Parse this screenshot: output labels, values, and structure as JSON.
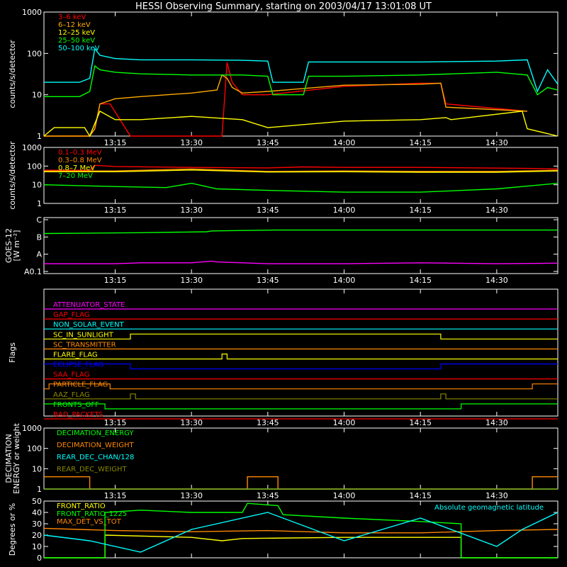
{
  "title": "HESSI Observing Summary, starting on 2003/04/17 13:01:08 UT",
  "time_ticks": [
    "13:15",
    "13:30",
    "13:45",
    "14:00",
    "14:15",
    "14:30"
  ],
  "chart_data": [
    {
      "type": "line",
      "ylabel": "counts/s/detector",
      "yscale": "log",
      "ylim": [
        1,
        1000
      ],
      "yticks": [
        "1",
        "10",
        "100",
        "1000"
      ],
      "xlim": [
        "13:01",
        "14:42"
      ],
      "legend_position": "top-left",
      "series": [
        {
          "name": "3–6 keV",
          "color": "#ff0000",
          "x": [
            "13:01",
            "13:10",
            "13:11",
            "13:12",
            "13:14",
            "13:18",
            "13:30",
            "13:36",
            "13:37",
            "13:38",
            "13:40",
            "13:45",
            "14:00",
            "14:15",
            "14:19",
            "14:20",
            "14:36"
          ],
          "y": [
            1,
            1,
            1.5,
            6,
            6,
            1,
            1,
            1,
            60,
            20,
            10,
            10,
            16,
            19,
            19,
            6,
            4
          ]
        },
        {
          "name": "6–12 keV",
          "color": "#ffaa00",
          "x": [
            "13:01",
            "13:10",
            "13:11",
            "13:12",
            "13:15",
            "13:20",
            "13:30",
            "13:35",
            "13:36",
            "13:37",
            "13:38",
            "13:40",
            "13:45",
            "14:00",
            "14:15",
            "14:19",
            "14:20",
            "14:36"
          ],
          "y": [
            1,
            1,
            1.5,
            6,
            8,
            9,
            11,
            13,
            30,
            25,
            15,
            11,
            12,
            17,
            18,
            19,
            5,
            4
          ]
        },
        {
          "name": "12–25 keV",
          "color": "#ffff00",
          "x": [
            "13:01",
            "13:03",
            "13:09",
            "13:10",
            "13:12",
            "13:15",
            "13:20",
            "13:30",
            "13:40",
            "13:45",
            "14:00",
            "14:15",
            "14:20",
            "14:21",
            "14:35",
            "14:36",
            "14:42"
          ],
          "y": [
            1,
            1.6,
            1.6,
            1,
            4,
            2.5,
            2.5,
            3,
            2.5,
            1.6,
            2.3,
            2.5,
            2.8,
            2.5,
            4,
            1.5,
            1
          ]
        },
        {
          "name": "25–50 keV",
          "color": "#00ff00",
          "x": [
            "13:01",
            "13:08",
            "13:10",
            "13:11",
            "13:12",
            "13:15",
            "13:20",
            "13:30",
            "13:40",
            "13:45",
            "13:46",
            "13:52",
            "13:53",
            "14:00",
            "14:15",
            "14:30",
            "14:36",
            "14:38",
            "14:40",
            "14:42"
          ],
          "y": [
            9,
            9,
            12,
            50,
            40,
            35,
            32,
            30,
            30,
            28,
            10,
            10,
            28,
            28,
            30,
            35,
            30,
            10,
            15,
            13
          ]
        },
        {
          "name": "50–100 keV",
          "color": "#00ffff",
          "x": [
            "13:01",
            "13:08",
            "13:10",
            "13:11",
            "13:12",
            "13:15",
            "13:20",
            "13:30",
            "13:40",
            "13:45",
            "13:46",
            "13:52",
            "13:53",
            "14:00",
            "14:15",
            "14:30",
            "14:36",
            "14:38",
            "14:40",
            "14:42"
          ],
          "y": [
            20,
            20,
            25,
            130,
            90,
            75,
            70,
            70,
            68,
            65,
            20,
            20,
            62,
            62,
            62,
            65,
            70,
            12,
            40,
            18
          ]
        }
      ]
    },
    {
      "type": "line",
      "ylabel": "counts/s/detector",
      "yscale": "log",
      "ylim": [
        1,
        1000
      ],
      "yticks": [
        "1",
        "10",
        "100",
        "1000"
      ],
      "legend_position": "top-left",
      "series": [
        {
          "name": "0.1–0.3 MeV",
          "color": "#ff0000",
          "x": [
            "13:01",
            "13:10",
            "13:11",
            "13:15",
            "13:30",
            "13:45",
            "13:52",
            "14:00",
            "14:15",
            "14:36",
            "14:42"
          ],
          "y": [
            60,
            60,
            110,
            95,
            85,
            80,
            90,
            85,
            85,
            75,
            70
          ]
        },
        {
          "name": "0.3–0.8 MeV",
          "color": "#ff8800",
          "x": [
            "13:01",
            "13:15",
            "13:30",
            "13:45",
            "14:00",
            "14:15",
            "14:30",
            "14:42"
          ],
          "y": [
            55,
            55,
            70,
            52,
            55,
            52,
            52,
            60
          ]
        },
        {
          "name": "0.8–7 MeV",
          "color": "#ffff00",
          "x": [
            "13:01",
            "13:15",
            "13:30",
            "13:45",
            "14:00",
            "14:15",
            "14:30",
            "14:42"
          ],
          "y": [
            50,
            50,
            62,
            48,
            50,
            47,
            47,
            55
          ]
        },
        {
          "name": "7–20 MeV",
          "color": "#00ff00",
          "x": [
            "13:01",
            "13:15",
            "13:25",
            "13:30",
            "13:35",
            "13:45",
            "14:00",
            "14:15",
            "14:30",
            "14:42"
          ],
          "y": [
            10,
            8,
            7,
            12,
            6,
            5,
            4,
            4,
            6,
            12
          ]
        }
      ]
    },
    {
      "type": "line",
      "ylabel": "GOES-12 [W m⁻²]",
      "yticks": [
        "A0.1",
        "A",
        "B",
        "C"
      ],
      "series": [
        {
          "name": "",
          "color": "#00ff00",
          "x": [
            "13:01",
            "13:20",
            "13:33",
            "13:34",
            "13:46",
            "14:42"
          ],
          "y": [
            2.2,
            2.25,
            2.3,
            2.35,
            2.4,
            2.4
          ]
        },
        {
          "name": "",
          "color": "#ff00ff",
          "x": [
            "13:01",
            "13:15",
            "13:20",
            "13:30",
            "13:34",
            "13:35",
            "13:45",
            "14:00",
            "14:15",
            "14:30",
            "14:42"
          ],
          "y": [
            0.45,
            0.45,
            0.5,
            0.5,
            0.6,
            0.55,
            0.45,
            0.45,
            0.5,
            0.45,
            0.48
          ]
        }
      ]
    },
    {
      "type": "line",
      "ylabel": "Flags",
      "series": [
        {
          "name": "ATTENUATOR_STATE",
          "color": "#ff00ff",
          "x": [
            "13:01",
            "14:42"
          ],
          "y": [
            0,
            0
          ]
        },
        {
          "name": "GAP_FLAG",
          "color": "#ff0000",
          "x": [
            "13:01",
            "14:42"
          ],
          "y": [
            0,
            0
          ]
        },
        {
          "name": "NON_SOLAR_EVENT",
          "color": "#00ffff",
          "x": [
            "13:01",
            "14:42"
          ],
          "y": [
            0,
            0
          ]
        },
        {
          "name": "SC_IN_SUNLIGHT",
          "color": "#ffff00",
          "x": [
            "13:01",
            "13:18",
            "13:18",
            "14:19",
            "14:19",
            "14:42"
          ],
          "y": [
            0,
            0,
            1,
            1,
            0,
            0
          ]
        },
        {
          "name": "SC_TRANSMITTER",
          "color": "#ff8800",
          "x": [
            "13:01",
            "14:42"
          ],
          "y": [
            0,
            0
          ]
        },
        {
          "name": "FLARE_FLAG",
          "color": "#ffff00",
          "x": [
            "13:01",
            "13:36",
            "13:36",
            "13:37",
            "13:37",
            "14:42"
          ],
          "y": [
            0,
            0,
            1,
            1,
            0,
            0
          ]
        },
        {
          "name": "ECLIPSE_FLAG",
          "color": "#0000ff",
          "x": [
            "13:01",
            "13:18",
            "13:18",
            "14:19",
            "14:19",
            "14:42"
          ],
          "y": [
            1,
            1,
            0,
            0,
            1,
            1
          ]
        },
        {
          "name": "SAA_FLAG",
          "color": "#ff0000",
          "x": [
            "13:01",
            "14:42"
          ],
          "y": [
            0,
            0
          ]
        },
        {
          "name": "PARTICLE_FLAG",
          "color": "#ff8800",
          "x": [
            "13:01",
            "13:02",
            "13:02",
            "13:14",
            "13:14",
            "14:37",
            "14:37",
            "14:42"
          ],
          "y": [
            0,
            0,
            1,
            1,
            0,
            0,
            1,
            1
          ]
        },
        {
          "name": "AAZ_FLAG",
          "color": "#888800",
          "x": [
            "13:01",
            "13:18",
            "13:18",
            "13:19",
            "13:19",
            "14:19",
            "14:19",
            "14:20",
            "14:20",
            "14:42"
          ],
          "y": [
            0,
            0,
            1,
            1,
            0,
            0,
            1,
            1,
            0,
            0
          ]
        },
        {
          "name": "FRONTS_OFF",
          "color": "#00ff00",
          "x": [
            "13:01",
            "13:13",
            "13:13",
            "14:23",
            "14:23",
            "14:42"
          ],
          "y": [
            1,
            1,
            0,
            0,
            1,
            1
          ]
        },
        {
          "name": "BAD_PACKETS",
          "color": "#ff0000",
          "x": [
            "13:01",
            "14:42"
          ],
          "y": [
            0,
            0
          ]
        }
      ]
    },
    {
      "type": "line",
      "ylabel": "DECIMATION ENERGY or weight",
      "yscale": "log",
      "ylim": [
        1,
        1000
      ],
      "yticks": [
        "1",
        "10",
        "100",
        "1000"
      ],
      "legend_position": "top-left",
      "series": [
        {
          "name": "DECIMATION_ENERGY",
          "color": "#00ff00",
          "x": [
            "13:01",
            "14:42"
          ],
          "y": [
            1,
            1
          ]
        },
        {
          "name": "DECIMATION_WEIGHT",
          "color": "#ff8800",
          "x": [
            "13:01",
            "13:10",
            "13:10",
            "13:41",
            "13:41",
            "13:47",
            "13:47",
            "14:37",
            "14:37",
            "14:42"
          ],
          "y": [
            4,
            4,
            1,
            1,
            4,
            4,
            1,
            1,
            4,
            4
          ]
        },
        {
          "name": "REAR_DEC_CHAN/128",
          "color": "#00ffff",
          "x": [
            "13:01",
            "14:42"
          ],
          "y": [
            1,
            1
          ]
        },
        {
          "name": "REAR_DEC_WEIGHT",
          "color": "#888800",
          "x": [
            "13:01",
            "14:42"
          ],
          "y": [
            1,
            1
          ]
        }
      ]
    },
    {
      "type": "line",
      "ylabel": "Degrees or %",
      "ylim": [
        0,
        50
      ],
      "yticks": [
        "0",
        "10",
        "20",
        "30",
        "40",
        "50"
      ],
      "series": [
        {
          "name": "FRONT_RATIO",
          "color": "#ffff00",
          "x": [
            "13:01",
            "13:13",
            "13:13",
            "13:30",
            "13:36",
            "13:40",
            "14:00",
            "14:23",
            "14:23",
            "14:42"
          ],
          "y": [
            0,
            0,
            20,
            18,
            15,
            17,
            18,
            18,
            0,
            0
          ]
        },
        {
          "name": "FRONT_RATIO_1225",
          "color": "#00ff00",
          "x": [
            "13:01",
            "13:13",
            "13:13",
            "13:20",
            "13:30",
            "13:40",
            "13:41",
            "13:47",
            "13:48",
            "14:00",
            "14:15",
            "14:23",
            "14:23",
            "14:42"
          ],
          "y": [
            0,
            0,
            40,
            42,
            40,
            40,
            48,
            46,
            38,
            35,
            32,
            30,
            0,
            0
          ]
        },
        {
          "name": "MAX_DET_VS_TOT",
          "color": "#ff8800",
          "x": [
            "13:01",
            "13:15",
            "13:30",
            "13:45",
            "14:00",
            "14:15",
            "14:30",
            "14:42"
          ],
          "y": [
            26,
            24,
            23,
            24,
            22,
            22,
            24,
            25
          ]
        },
        {
          "name": "Absolute geomagnetic latitude",
          "color": "#00ffff",
          "x": [
            "13:01",
            "13:10",
            "13:20",
            "13:30",
            "13:45",
            "14:00",
            "14:15",
            "14:30",
            "14:35",
            "14:42"
          ],
          "y": [
            20,
            15,
            5,
            25,
            40,
            15,
            35,
            10,
            25,
            40
          ]
        }
      ]
    }
  ],
  "colors": {
    "background": "#000000",
    "axes": "#ffffff"
  }
}
